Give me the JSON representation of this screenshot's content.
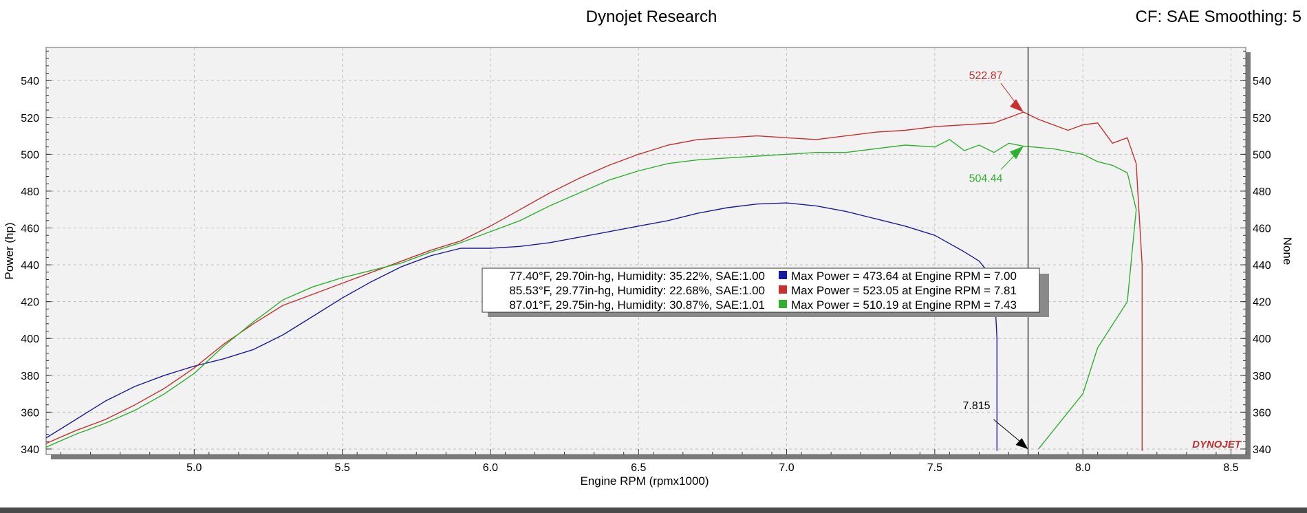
{
  "header": {
    "title": "Dynojet Research",
    "right_text": "CF: SAE Smoothing: 5"
  },
  "colors": {
    "blue": "#1a1aa0",
    "red": "#c8302f",
    "green": "#2fb02f",
    "grid": "#bfbfbf",
    "plot_bg": "#f2f2f2"
  },
  "watermark": "DYNOJET",
  "chart_data": {
    "type": "line",
    "xlabel": "Engine RPM (rpmx1000)",
    "ylabel": "Power (hp)",
    "ylabel_right": "None",
    "xlim": [
      4.5,
      8.55
    ],
    "ylim": [
      337,
      558
    ],
    "x_ticks": [
      "5.0",
      "5.5",
      "6.0",
      "6.5",
      "7.0",
      "7.5",
      "8.0",
      "8.5"
    ],
    "y_ticks": [
      "340",
      "360",
      "380",
      "400",
      "420",
      "440",
      "460",
      "480",
      "500",
      "520",
      "540"
    ],
    "grid": true,
    "series": [
      {
        "color_key": "blue",
        "points": [
          [
            4.5,
            346
          ],
          [
            4.6,
            356
          ],
          [
            4.7,
            366
          ],
          [
            4.8,
            374
          ],
          [
            4.9,
            380
          ],
          [
            5.0,
            385
          ],
          [
            5.1,
            389
          ],
          [
            5.2,
            394
          ],
          [
            5.3,
            402
          ],
          [
            5.4,
            412
          ],
          [
            5.5,
            422
          ],
          [
            5.6,
            431
          ],
          [
            5.7,
            439
          ],
          [
            5.8,
            445
          ],
          [
            5.9,
            449
          ],
          [
            6.0,
            449
          ],
          [
            6.1,
            450
          ],
          [
            6.2,
            452
          ],
          [
            6.3,
            455
          ],
          [
            6.4,
            458
          ],
          [
            6.5,
            461
          ],
          [
            6.6,
            464
          ],
          [
            6.7,
            468
          ],
          [
            6.8,
            471
          ],
          [
            6.9,
            473
          ],
          [
            7.0,
            473.6
          ],
          [
            7.1,
            472
          ],
          [
            7.2,
            469
          ],
          [
            7.3,
            465
          ],
          [
            7.4,
            461
          ],
          [
            7.5,
            456
          ],
          [
            7.6,
            447
          ],
          [
            7.65,
            442
          ],
          [
            7.7,
            432
          ],
          [
            7.71,
            400
          ],
          [
            7.71,
            339
          ]
        ]
      },
      {
        "color_key": "red",
        "points": [
          [
            4.5,
            343
          ],
          [
            4.6,
            350
          ],
          [
            4.7,
            356
          ],
          [
            4.8,
            364
          ],
          [
            4.9,
            373
          ],
          [
            5.0,
            384
          ],
          [
            5.1,
            397
          ],
          [
            5.2,
            408
          ],
          [
            5.3,
            418
          ],
          [
            5.4,
            424
          ],
          [
            5.5,
            430
          ],
          [
            5.6,
            436
          ],
          [
            5.7,
            442
          ],
          [
            5.8,
            448
          ],
          [
            5.9,
            453
          ],
          [
            6.0,
            461
          ],
          [
            6.1,
            470
          ],
          [
            6.2,
            479
          ],
          [
            6.3,
            487
          ],
          [
            6.4,
            494
          ],
          [
            6.5,
            500
          ],
          [
            6.6,
            505
          ],
          [
            6.7,
            508
          ],
          [
            6.8,
            509
          ],
          [
            6.9,
            510
          ],
          [
            7.0,
            509
          ],
          [
            7.1,
            508
          ],
          [
            7.2,
            510
          ],
          [
            7.3,
            512
          ],
          [
            7.4,
            513
          ],
          [
            7.5,
            515
          ],
          [
            7.6,
            516
          ],
          [
            7.7,
            517
          ],
          [
            7.8,
            522.9
          ],
          [
            7.85,
            519
          ],
          [
            7.9,
            516
          ],
          [
            7.95,
            513
          ],
          [
            8.0,
            516
          ],
          [
            8.05,
            517
          ],
          [
            8.1,
            506
          ],
          [
            8.15,
            509
          ],
          [
            8.18,
            495
          ],
          [
            8.2,
            440
          ],
          [
            8.2,
            339
          ]
        ]
      },
      {
        "color_key": "green",
        "points": [
          [
            4.5,
            341
          ],
          [
            4.6,
            348
          ],
          [
            4.7,
            354
          ],
          [
            4.8,
            361
          ],
          [
            4.9,
            370
          ],
          [
            5.0,
            381
          ],
          [
            5.1,
            396
          ],
          [
            5.2,
            409
          ],
          [
            5.3,
            421
          ],
          [
            5.4,
            428
          ],
          [
            5.5,
            433
          ],
          [
            5.6,
            437
          ],
          [
            5.7,
            441
          ],
          [
            5.8,
            447
          ],
          [
            5.9,
            452
          ],
          [
            6.0,
            458
          ],
          [
            6.1,
            464
          ],
          [
            6.2,
            472
          ],
          [
            6.3,
            479
          ],
          [
            6.4,
            486
          ],
          [
            6.5,
            491
          ],
          [
            6.6,
            495
          ],
          [
            6.7,
            497
          ],
          [
            6.8,
            498
          ],
          [
            6.9,
            499
          ],
          [
            7.0,
            500
          ],
          [
            7.1,
            501
          ],
          [
            7.2,
            501
          ],
          [
            7.3,
            503
          ],
          [
            7.4,
            505
          ],
          [
            7.5,
            504
          ],
          [
            7.55,
            508
          ],
          [
            7.6,
            502
          ],
          [
            7.65,
            505
          ],
          [
            7.7,
            501
          ],
          [
            7.75,
            506
          ],
          [
            7.8,
            504.4
          ],
          [
            7.9,
            503
          ],
          [
            8.0,
            500
          ],
          [
            8.05,
            496
          ],
          [
            8.1,
            494
          ],
          [
            8.15,
            490
          ],
          [
            8.18,
            470
          ],
          [
            8.15,
            420
          ],
          [
            8.05,
            395
          ],
          [
            8.0,
            370
          ],
          [
            7.85,
            340
          ]
        ]
      }
    ],
    "cursor": {
      "x": 7.815,
      "label": "7.815"
    },
    "annotations": [
      {
        "text": "522.87",
        "x": 7.8,
        "y": 522.87,
        "color_key": "red"
      },
      {
        "text": "504.44",
        "x": 7.8,
        "y": 504.44,
        "color_key": "green"
      }
    ],
    "legend": {
      "placement": "center",
      "entries": [
        {
          "conditions": "77.40°F, 29.70in-hg, Humidity: 35.22%, SAE:1.00",
          "result": "Max Power = 473.64 at Engine RPM = 7.00",
          "color_key": "blue"
        },
        {
          "conditions": "85.53°F, 29.77in-hg, Humidity: 22.68%, SAE:1.00",
          "result": "Max Power = 523.05 at Engine RPM = 7.81",
          "color_key": "red"
        },
        {
          "conditions": "87.01°F, 29.75in-hg, Humidity: 30.87%, SAE:1.01",
          "result": "Max Power = 510.19 at Engine RPM = 7.43",
          "color_key": "green"
        }
      ]
    }
  }
}
